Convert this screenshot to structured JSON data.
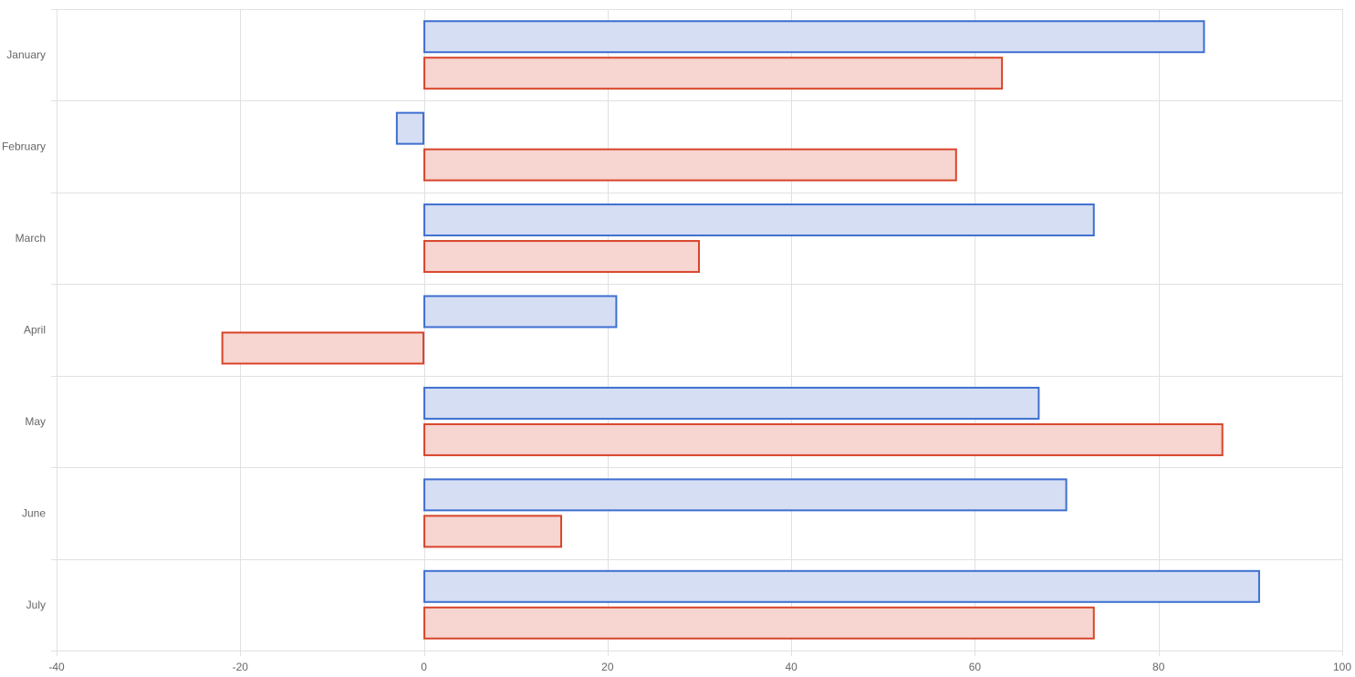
{
  "chart_data": {
    "type": "bar",
    "orientation": "horizontal",
    "title": "",
    "xlabel": "",
    "ylabel": "",
    "categories": [
      "January",
      "February",
      "March",
      "April",
      "May",
      "June",
      "July"
    ],
    "series": [
      {
        "values": [
          85,
          -3,
          73,
          21,
          67,
          70,
          91
        ],
        "color": "#3e6fd0",
        "fill": "#d5def3"
      },
      {
        "values": [
          63,
          58,
          30,
          -22,
          87,
          15,
          73
        ],
        "color": "#d8442a",
        "fill": "#f7d5d0"
      }
    ],
    "xlim": [
      -40,
      100
    ],
    "xticks": [
      -40,
      -20,
      0,
      20,
      40,
      60,
      80,
      100
    ],
    "x_tick_labels": [
      "-40",
      "-20",
      "0",
      "20",
      "40",
      "60",
      "80",
      "100"
    ],
    "grid": true,
    "legend": "none"
  },
  "colors": {
    "grid": "#e1e1e1",
    "axis": "#bdbdbd",
    "tick_text": "#666666"
  }
}
